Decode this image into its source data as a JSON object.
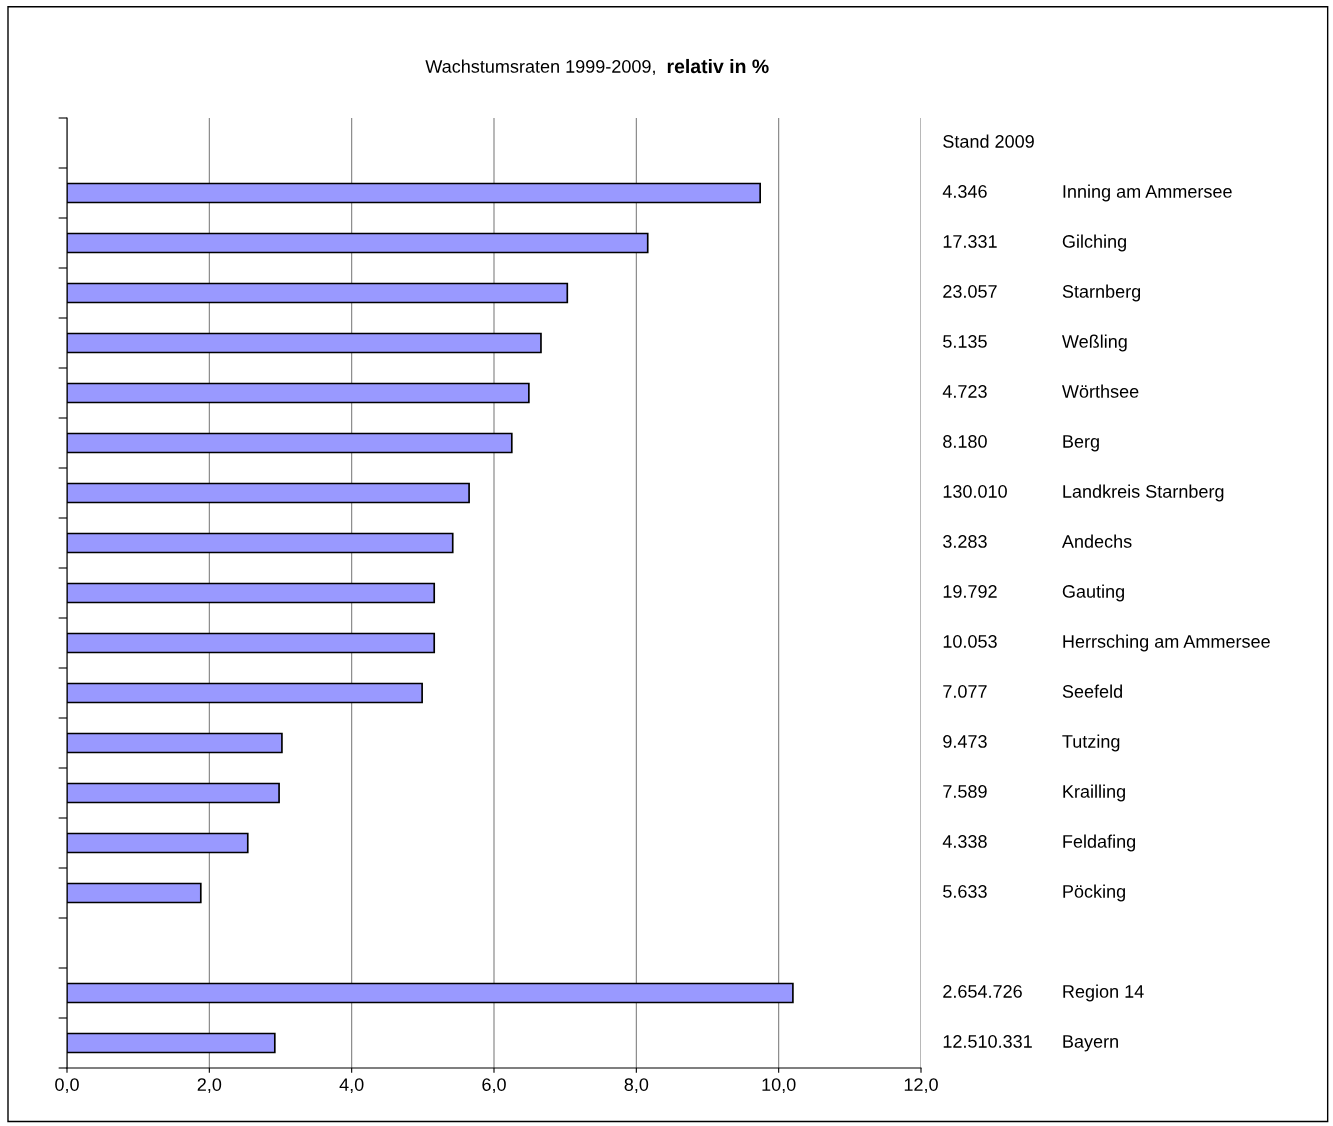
{
  "chart_data": {
    "type": "bar",
    "orientation": "horizontal",
    "title": "Wachstumsraten 1999-2009,",
    "subtitle": "relativ in %",
    "categories": [
      null,
      "Inning am Ammersee",
      "Gilching",
      "Starnberg",
      "Weßling",
      "Wörthsee",
      "Berg",
      "Landkreis Starnberg",
      "Andechs",
      "Gauting",
      "Herrsching am Ammersee",
      "Seefeld",
      "Tutzing",
      "Krailling",
      "Feldafing",
      "Pöcking",
      null,
      "Region 14",
      "Bayern"
    ],
    "values": [
      null,
      9.74,
      8.16,
      7.03,
      6.66,
      6.49,
      6.25,
      5.65,
      5.42,
      5.16,
      5.16,
      4.99,
      3.02,
      2.98,
      2.54,
      1.88,
      null,
      10.2,
      2.92
    ],
    "color": "#9999ff",
    "xlim": [
      0,
      12
    ],
    "xticks": [
      {
        "value": 0,
        "label": "0,0"
      },
      {
        "value": 2,
        "label": "2,0"
      },
      {
        "value": 4,
        "label": "4,0"
      },
      {
        "value": 6,
        "label": "6,0"
      },
      {
        "value": 8,
        "label": "8,0"
      },
      {
        "value": 10,
        "label": "10,0"
      },
      {
        "value": 12,
        "label": "12,0"
      }
    ],
    "grid": "x",
    "annotations": [
      "Stand 2009",
      "4.346",
      "17.331",
      "23.057",
      "5.135",
      "4.723",
      "8.180",
      "130.010",
      "3.283",
      "19.792",
      "10.053",
      "7.077",
      "9.473",
      "7.589",
      "4.338",
      "5.633",
      "2.654.726",
      "12.510.331"
    ]
  }
}
